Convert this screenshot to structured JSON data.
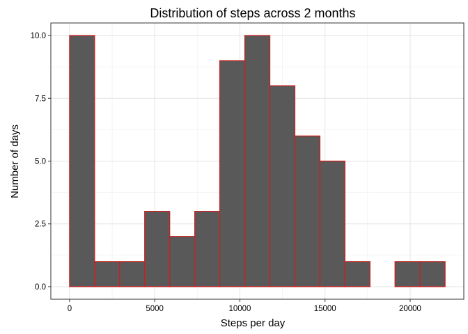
{
  "chart_data": {
    "type": "bar",
    "title": "Distribution of steps across 2 months",
    "xlabel": "Steps per day",
    "ylabel": "Number of days",
    "bin_width": 1470,
    "bins": [
      {
        "x_start": 0,
        "x_end": 1470,
        "count": 10
      },
      {
        "x_start": 1470,
        "x_end": 2940,
        "count": 1
      },
      {
        "x_start": 2940,
        "x_end": 4410,
        "count": 1
      },
      {
        "x_start": 4410,
        "x_end": 5880,
        "count": 3
      },
      {
        "x_start": 5880,
        "x_end": 7350,
        "count": 2
      },
      {
        "x_start": 7350,
        "x_end": 8820,
        "count": 3
      },
      {
        "x_start": 8820,
        "x_end": 10290,
        "count": 9
      },
      {
        "x_start": 10290,
        "x_end": 11760,
        "count": 10
      },
      {
        "x_start": 11760,
        "x_end": 13230,
        "count": 8
      },
      {
        "x_start": 13230,
        "x_end": 14700,
        "count": 6
      },
      {
        "x_start": 14700,
        "x_end": 16170,
        "count": 5
      },
      {
        "x_start": 16170,
        "x_end": 17640,
        "count": 1
      },
      {
        "x_start": 17640,
        "x_end": 19110,
        "count": 0
      },
      {
        "x_start": 19110,
        "x_end": 20580,
        "count": 1
      },
      {
        "x_start": 20580,
        "x_end": 22050,
        "count": 1
      }
    ],
    "x_ticks": [
      0,
      5000,
      10000,
      15000,
      20000
    ],
    "x_tick_labels": [
      "0",
      "5000",
      "10000",
      "15000",
      "20000"
    ],
    "y_ticks": [
      0,
      2.5,
      5,
      7.5,
      10
    ],
    "y_tick_labels": [
      "0.0",
      "2.5",
      "5.0",
      "7.5",
      "10.0"
    ],
    "xlim": [
      -1100,
      23150
    ],
    "ylim": [
      -0.5,
      10.5
    ],
    "grid": true,
    "legend": "none",
    "colors": {
      "bar_fill": "#595959",
      "bar_stroke": "#cc1f1f",
      "grid_major": "#e3e3e3",
      "grid_minor": "#f2f2f2",
      "panel_border": "#333333",
      "tick_mark": "#333333"
    }
  }
}
